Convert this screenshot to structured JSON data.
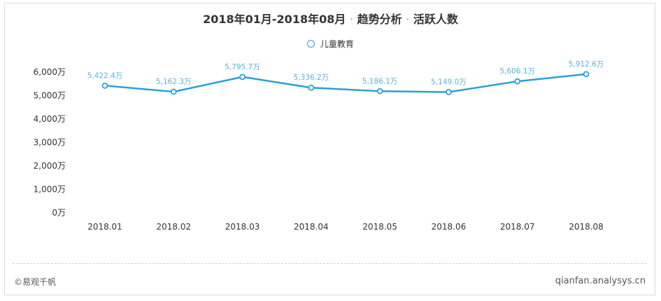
{
  "title_prefix": "2018年01月-2018年08月",
  "title_mid": "趋势分析",
  "title_suffix": "活跃人数",
  "title_sep": "·",
  "footer": {
    "source": "©易观千帆",
    "site": "qianfan.analysys.cn"
  },
  "colors": {
    "line": "#2aa0d9",
    "label": "#5ab0de",
    "axis_text": "#333333"
  },
  "chart_data": {
    "type": "line",
    "categories": [
      "2018.01",
      "2018.02",
      "2018.03",
      "2018.04",
      "2018.05",
      "2018.06",
      "2018.07",
      "2018.08"
    ],
    "series": [
      {
        "name": "儿童教育",
        "values": [
          5422.4,
          5162.3,
          5795.7,
          5336.2,
          5186.1,
          5149.0,
          5606.1,
          5912.6
        ],
        "labels": [
          "5,422.4万",
          "5,162.3万",
          "5,795.7万",
          "5,336.2万",
          "5,186.1万",
          "5,149.0万",
          "5,606.1万",
          "5,912.6万"
        ]
      }
    ],
    "ylim": [
      0,
      6000
    ],
    "yticks": [
      "0万",
      "1,000万",
      "2,000万",
      "3,000万",
      "4,000万",
      "5,000万",
      "6,000万"
    ],
    "ytick_values": [
      0,
      1000,
      2000,
      3000,
      4000,
      5000,
      6000
    ],
    "grid": false,
    "legend_position": "top-center"
  }
}
